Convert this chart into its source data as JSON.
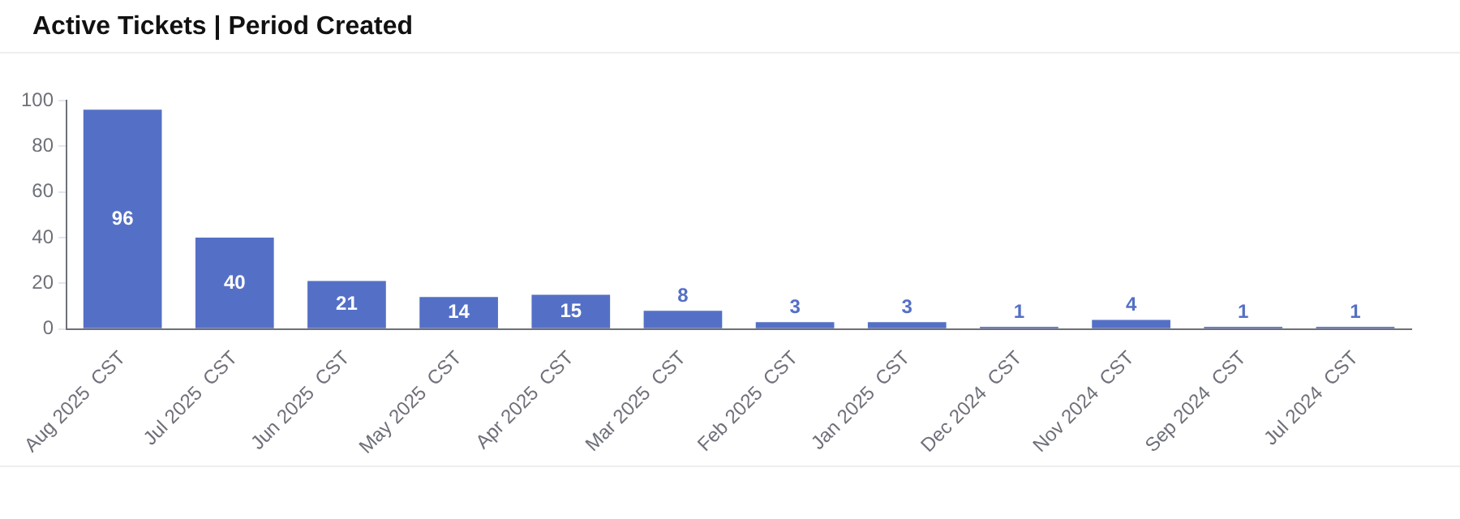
{
  "chart_data": {
    "type": "bar",
    "title": "Active Tickets | Period Created",
    "categories": [
      "Aug 2025  CST",
      "Jul 2025  CST",
      "Jun 2025  CST",
      "May 2025  CST",
      "Apr 2025  CST",
      "Mar 2025  CST",
      "Feb 2025  CST",
      "Jan 2025  CST",
      "Dec 2024  CST",
      "Nov 2024  CST",
      "Sep 2024  CST",
      "Jul 2024  CST"
    ],
    "values": [
      96,
      40,
      21,
      14,
      15,
      8,
      3,
      3,
      1,
      4,
      1,
      1
    ],
    "color": "#5470c6",
    "ylim": [
      0,
      100
    ],
    "yticks": [
      0,
      20,
      40,
      60,
      80,
      100
    ],
    "grid": false,
    "legend": false,
    "data_labels": true
  }
}
